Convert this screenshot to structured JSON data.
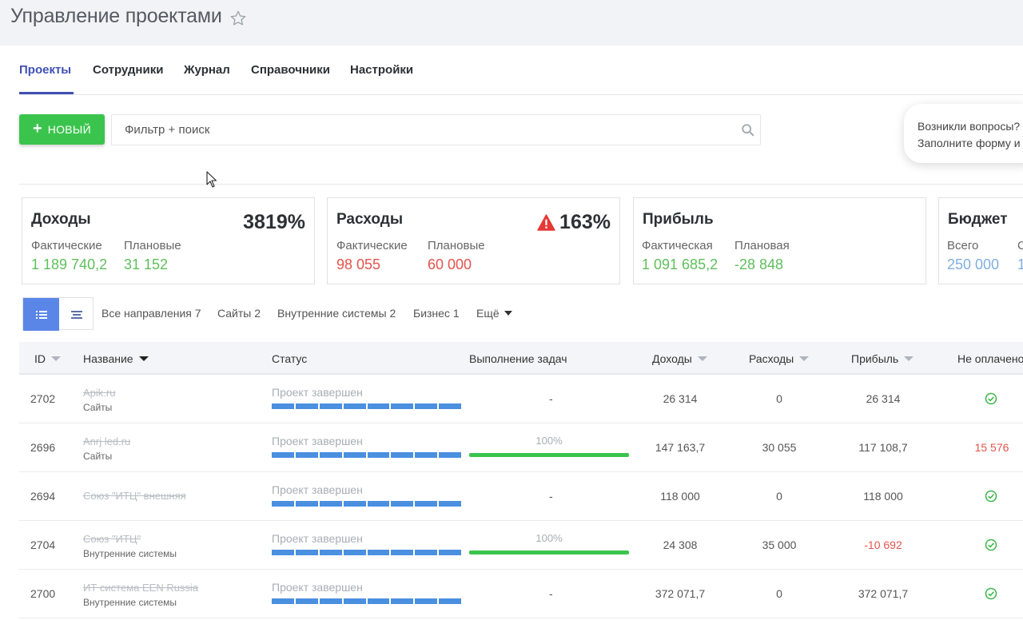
{
  "header": {
    "title": "Управление проектами",
    "star_icon": "star-outline-icon"
  },
  "tabs": [
    {
      "label": "Проекты",
      "active": true
    },
    {
      "label": "Сотрудники"
    },
    {
      "label": "Журнал"
    },
    {
      "label": "Справочники"
    },
    {
      "label": "Настройки"
    }
  ],
  "toolbar": {
    "new_button_label": "НОВЫЙ",
    "search_placeholder": "Фильтр + поиск"
  },
  "help": {
    "line1": "Возникли вопросы?",
    "line2": "Заполните форму и"
  },
  "cards": [
    {
      "title": "Доходы",
      "percent": "3819%",
      "actual_label": "Фактические",
      "actual_value": "1 189 740,2",
      "plan_label": "Плановые",
      "plan_value": "31 152"
    },
    {
      "title": "Расходы",
      "percent": "163%",
      "actual_label": "Фактические",
      "actual_value": "98 055",
      "plan_label": "Плановые",
      "plan_value": "60 000"
    },
    {
      "title": "Прибыль",
      "actual_label": "Фактическая",
      "actual_value": "1 091 685,2",
      "plan_label": "Плановая",
      "plan_value": "-28 848"
    },
    {
      "title": "Бюджет",
      "actual_label": "Всего",
      "actual_value": "250 000",
      "plan_label": "С",
      "plan_value": "1"
    }
  ],
  "filters": {
    "all": "Все направления 7",
    "sites": "Сайты 2",
    "internal": "Внутренние системы 2",
    "business": "Бизнес 1",
    "more": "Ещё"
  },
  "columns": {
    "id": "ID",
    "name": "Название",
    "status": "Статус",
    "tasks": "Выполнение задач",
    "income": "Доходы",
    "expenses": "Расходы",
    "profit": "Прибыль",
    "unpaid": "Не оплачено"
  },
  "rows": [
    {
      "id": "2702",
      "name": "Apik.ru",
      "direction": "Сайты",
      "status": "Проект завершен",
      "tasks": "-",
      "income": "26 314",
      "expenses": "0",
      "profit": "26 314",
      "unpaid": ""
    },
    {
      "id": "2696",
      "name": "Anrj led.ru",
      "direction": "Сайты",
      "status": "Проект завершен",
      "tasks": "100%",
      "income": "147 163,7",
      "expenses": "30 055",
      "profit": "117 108,7",
      "unpaid": "15 576"
    },
    {
      "id": "2694",
      "name": "Союз \"ИТЦ\" внешняя",
      "direction": "",
      "status": "Проект завершен",
      "tasks": "-",
      "income": "118 000",
      "expenses": "0",
      "profit": "118 000",
      "unpaid": ""
    },
    {
      "id": "2704",
      "name": "Союз \"ИТЦ\"",
      "direction": "Внутренние системы",
      "status": "Проект завершен",
      "tasks": "100%",
      "income": "24 308",
      "expenses": "35 000",
      "profit": "-10 692",
      "unpaid": ""
    },
    {
      "id": "2700",
      "name": "ИТ система EEN Russia",
      "direction": "Внутренние системы",
      "status": "Проект завершен",
      "tasks": "-",
      "income": "372 071,7",
      "expenses": "0",
      "profit": "372 071,7",
      "unpaid": ""
    }
  ]
}
